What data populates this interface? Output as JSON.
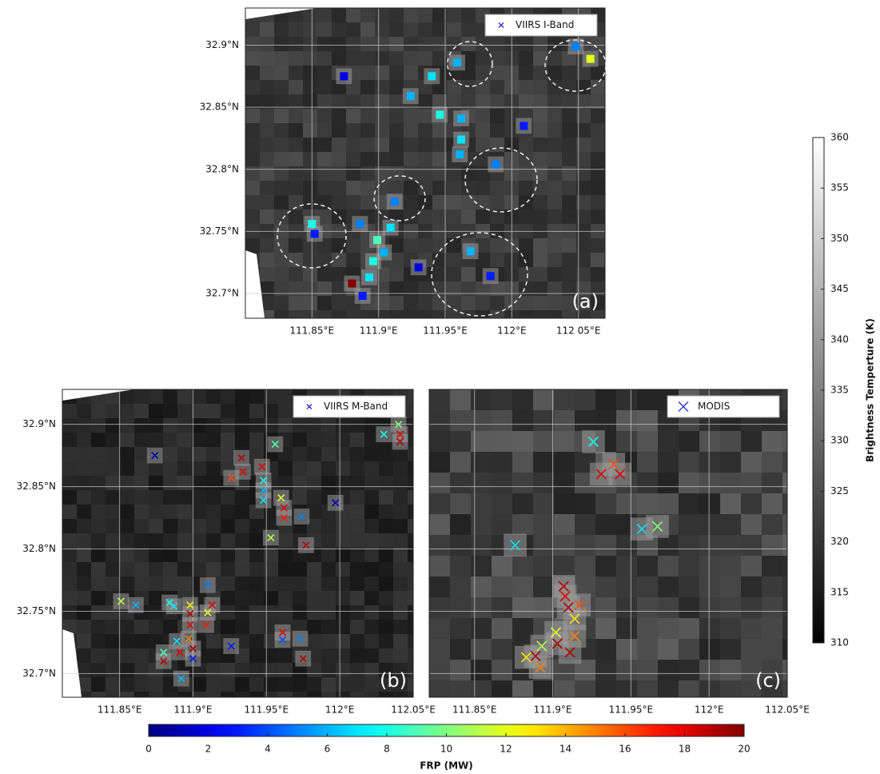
{
  "chart_data": [
    {
      "type": "scatter",
      "label": "(a)",
      "colormap": "jet",
      "grid": true,
      "ytick_labels": true,
      "xlim": [
        111.8,
        112.07
      ],
      "ylim": [
        32.68,
        32.93
      ],
      "xticks": [
        {
          "value": 111.85,
          "label": "111.85°E"
        },
        {
          "value": 111.9,
          "label": "111.9°E"
        },
        {
          "value": 111.95,
          "label": "111.95°E"
        },
        {
          "value": 112.0,
          "label": "112°E"
        },
        {
          "value": 112.05,
          "label": "112 05°E"
        }
      ],
      "yticks": [
        {
          "value": 32.7,
          "label": "32.7°N"
        },
        {
          "value": 32.75,
          "label": "32.75°N"
        },
        {
          "value": 32.8,
          "label": "32.8°N"
        },
        {
          "value": 32.85,
          "label": "32.85°N"
        },
        {
          "value": 32.9,
          "label": "32.9°N"
        }
      ],
      "series": [
        {
          "name": "VIIRS I-Band",
          "color": "#3030d0",
          "marker": "square",
          "x": [
            111.874,
            111.924,
            111.94,
            111.946,
            111.959,
            111.962,
            111.962,
            111.961,
            111.988,
            112.009,
            112.048,
            112.059,
            111.912,
            111.85,
            111.852,
            111.886,
            111.909,
            111.899,
            111.896,
            111.904,
            111.893,
            111.88,
            111.888,
            111.93,
            111.969,
            111.984
          ],
          "y": [
            32.875,
            32.859,
            32.875,
            32.844,
            32.886,
            32.841,
            32.824,
            32.812,
            32.804,
            32.835,
            32.899,
            32.889,
            32.774,
            32.756,
            32.748,
            32.756,
            32.753,
            32.743,
            32.726,
            32.733,
            32.713,
            32.708,
            32.698,
            32.721,
            32.734,
            32.714
          ],
          "values": [
            2,
            6,
            7,
            8,
            6,
            6,
            7,
            6,
            5,
            3,
            5,
            12,
            5,
            8,
            3,
            5,
            7,
            9,
            8,
            6,
            7,
            20,
            3,
            2,
            6,
            3
          ]
        }
      ]
    },
    {
      "type": "scatter",
      "label": "(b)",
      "colormap": "jet",
      "grid": true,
      "ytick_labels": true,
      "xlim": [
        111.811,
        112.05
      ],
      "ylim": [
        32.681,
        32.928
      ],
      "xticks": [
        {
          "value": 111.85,
          "label": "111.85°E"
        },
        {
          "value": 111.9,
          "label": "111.9°E"
        },
        {
          "value": 111.95,
          "label": "111.95°E"
        },
        {
          "value": 112.0,
          "label": "112°E"
        },
        {
          "value": 112.05,
          "label": "112.05°E"
        }
      ],
      "yticks": [
        {
          "value": 32.7,
          "label": "32.7°N"
        },
        {
          "value": 32.75,
          "label": "32.75°N"
        },
        {
          "value": 32.8,
          "label": "32.8°N"
        },
        {
          "value": 32.85,
          "label": "32.85°N"
        },
        {
          "value": 32.9,
          "label": "32.9°N"
        }
      ],
      "series": [
        {
          "name": "VIIRS M-Band",
          "color": "#3030d0",
          "marker": "x",
          "x": [
            111.874,
            111.926,
            111.934,
            111.933,
            111.947,
            111.948,
            111.956,
            111.948,
            111.948,
            111.96,
            111.962,
            111.962,
            111.974,
            111.953,
            111.977,
            111.997,
            112.03,
            112.04,
            112.041,
            112.041,
            111.851,
            111.861,
            111.884,
            111.887,
            111.898,
            111.91,
            111.913,
            111.898,
            111.91,
            111.898,
            111.909,
            111.897,
            111.889,
            111.9,
            111.88,
            111.891,
            111.88,
            111.9,
            111.892,
            111.926,
            111.961,
            111.961,
            111.973,
            111.975
          ],
          "y": [
            32.875,
            32.857,
            32.862,
            32.873,
            32.866,
            32.855,
            32.884,
            32.847,
            32.839,
            32.841,
            32.833,
            32.825,
            32.826,
            32.809,
            32.803,
            32.837,
            32.892,
            32.9,
            32.892,
            32.886,
            32.758,
            32.755,
            32.757,
            32.754,
            32.755,
            32.771,
            32.755,
            32.748,
            32.749,
            32.739,
            32.739,
            32.728,
            32.726,
            32.72,
            32.717,
            32.717,
            32.71,
            32.712,
            32.696,
            32.722,
            32.733,
            32.727,
            32.728,
            32.712
          ],
          "values": [
            1,
            16,
            18,
            19,
            18,
            8,
            9,
            6,
            7,
            12,
            18,
            17,
            5,
            11,
            19,
            1,
            8,
            10,
            18,
            19,
            11,
            6,
            8,
            7,
            13,
            5,
            18,
            19,
            12,
            18,
            17,
            15,
            7,
            19,
            9,
            18,
            19,
            3,
            6,
            3,
            18,
            4,
            5,
            19
          ]
        }
      ]
    },
    {
      "type": "scatter",
      "label": "(c)",
      "colormap": "jet",
      "grid": true,
      "ytick_labels": false,
      "xlim": [
        111.821,
        112.05
      ],
      "ylim": [
        32.681,
        32.928
      ],
      "xticks": [
        {
          "value": 111.85,
          "label": "111.85°E"
        },
        {
          "value": 111.9,
          "label": "111.9°E"
        },
        {
          "value": 111.95,
          "label": "111.95°E"
        },
        {
          "value": 112.0,
          "label": "112°E"
        },
        {
          "value": 112.05,
          "label": "112.05°E"
        }
      ],
      "yticks": [
        32.7,
        32.75,
        32.8,
        32.85,
        32.9
      ],
      "series": [
        {
          "name": "MODIS",
          "color": "#3030d0",
          "marker": "x",
          "x": [
            111.926,
            111.931,
            111.939,
            111.943,
            111.957,
            111.967,
            111.876,
            111.907,
            111.908,
            111.91,
            111.917,
            111.914,
            111.902,
            111.903,
            111.914,
            111.911,
            111.893,
            111.889,
            111.883,
            111.892
          ],
          "y": [
            32.886,
            32.86,
            32.868,
            32.86,
            32.816,
            32.818,
            32.803,
            32.77,
            32.762,
            32.753,
            32.755,
            32.744,
            32.733,
            32.724,
            32.73,
            32.717,
            32.722,
            32.714,
            32.713,
            32.705
          ],
          "values": [
            8,
            18,
            16,
            18,
            7,
            10,
            7,
            19,
            18,
            19,
            16,
            13,
            12,
            19,
            15,
            19,
            11,
            19,
            13,
            15
          ]
        }
      ]
    },
    {
      "type": "colorbar",
      "label": "FRP (MW)",
      "colormap": "jet",
      "orientation": "horizontal",
      "lim": [
        0,
        20
      ],
      "ticks": [
        0,
        2,
        4,
        6,
        8,
        10,
        12,
        14,
        16,
        18,
        20
      ]
    },
    {
      "type": "colorbar",
      "label": "Brightness Temperture (K)",
      "colormap": "gray",
      "orientation": "vertical",
      "lim": [
        310,
        360
      ],
      "ticks": [
        310,
        315,
        320,
        325,
        330,
        335,
        340,
        345,
        350,
        355,
        360
      ]
    }
  ]
}
